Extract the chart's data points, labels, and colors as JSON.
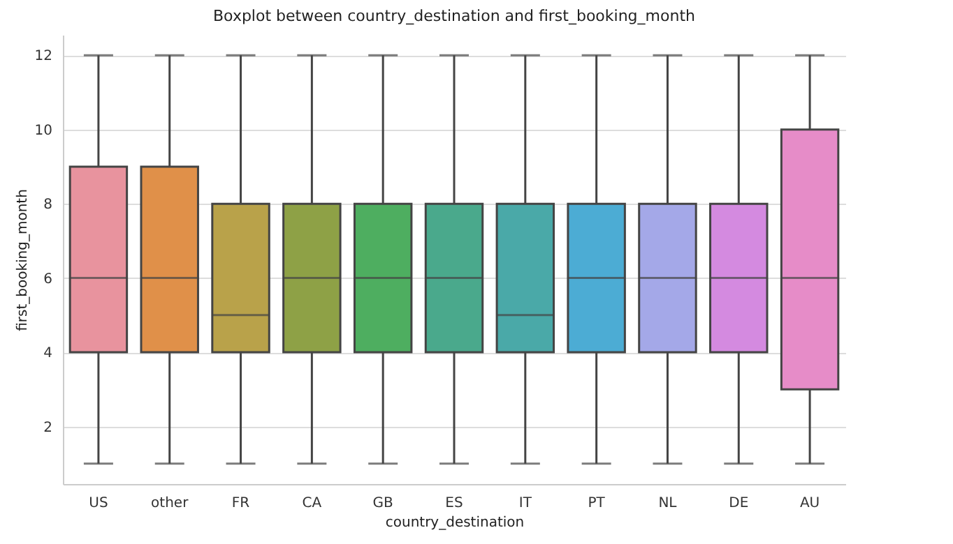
{
  "chart_data": {
    "type": "box",
    "title": "Boxplot between country_destination and first_booking_month",
    "xlabel": "country_destination",
    "ylabel": "first_booking_month",
    "categories": [
      "US",
      "other",
      "FR",
      "CA",
      "GB",
      "ES",
      "IT",
      "PT",
      "NL",
      "DE",
      "AU"
    ],
    "colors": [
      "#e8939e",
      "#e09049",
      "#b9a24a",
      "#8ea146",
      "#4eae60",
      "#4aa98c",
      "#4aa9a8",
      "#4cacd4",
      "#a4a8e8",
      "#d48ae0",
      "#e68cc8"
    ],
    "boxes": [
      {
        "low": 1,
        "q1": 4,
        "median": 6,
        "q3": 9,
        "high": 12
      },
      {
        "low": 1,
        "q1": 4,
        "median": 6,
        "q3": 9,
        "high": 12
      },
      {
        "low": 1,
        "q1": 4,
        "median": 5,
        "q3": 8,
        "high": 12
      },
      {
        "low": 1,
        "q1": 4,
        "median": 6,
        "q3": 8,
        "high": 12
      },
      {
        "low": 1,
        "q1": 4,
        "median": 6,
        "q3": 8,
        "high": 12
      },
      {
        "low": 1,
        "q1": 4,
        "median": 6,
        "q3": 8,
        "high": 12
      },
      {
        "low": 1,
        "q1": 4,
        "median": 5,
        "q3": 8,
        "high": 12
      },
      {
        "low": 1,
        "q1": 4,
        "median": 6,
        "q3": 8,
        "high": 12
      },
      {
        "low": 1,
        "q1": 4,
        "median": 6,
        "q3": 8,
        "high": 12
      },
      {
        "low": 1,
        "q1": 4,
        "median": 6,
        "q3": 8,
        "high": 12
      },
      {
        "low": 1,
        "q1": 3,
        "median": 6,
        "q3": 10,
        "high": 12
      }
    ],
    "ylim": [
      0.45,
      12.55
    ],
    "yticks": [
      2,
      4,
      6,
      8,
      10,
      12
    ],
    "grid": "y"
  }
}
